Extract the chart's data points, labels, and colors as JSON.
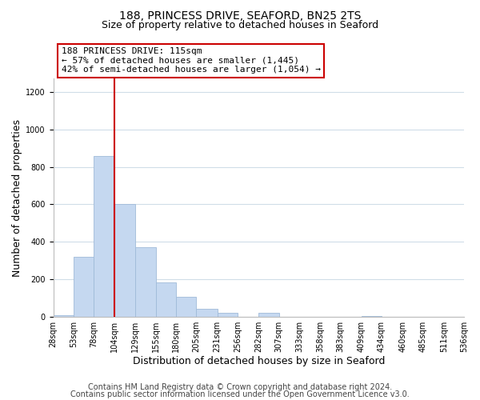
{
  "title_line1": "188, PRINCESS DRIVE, SEAFORD, BN25 2TS",
  "title_line2": "Size of property relative to detached houses in Seaford",
  "xlabel": "Distribution of detached houses by size in Seaford",
  "ylabel": "Number of detached properties",
  "bin_edges": [
    28,
    53,
    78,
    104,
    129,
    155,
    180,
    205,
    231,
    256,
    282,
    307,
    333,
    358,
    383,
    409,
    434,
    460,
    485,
    511,
    536
  ],
  "bar_heights": [
    10,
    320,
    860,
    600,
    370,
    185,
    105,
    45,
    20,
    0,
    20,
    0,
    0,
    0,
    0,
    5,
    0,
    0,
    0,
    0
  ],
  "bar_color": "#c5d8f0",
  "bar_edge_color": "#a0bad8",
  "tick_labels": [
    "28sqm",
    "53sqm",
    "78sqm",
    "104sqm",
    "129sqm",
    "155sqm",
    "180sqm",
    "205sqm",
    "231sqm",
    "256sqm",
    "282sqm",
    "307sqm",
    "333sqm",
    "358sqm",
    "383sqm",
    "409sqm",
    "434sqm",
    "460sqm",
    "485sqm",
    "511sqm",
    "536sqm"
  ],
  "ylim": [
    0,
    1270
  ],
  "yticks": [
    0,
    200,
    400,
    600,
    800,
    1000,
    1200
  ],
  "vline_x": 104,
  "vline_color": "#cc0000",
  "annotation_title": "188 PRINCESS DRIVE: 115sqm",
  "annotation_line1": "← 57% of detached houses are smaller (1,445)",
  "annotation_line2": "42% of semi-detached houses are larger (1,054) →",
  "annotation_box_color": "#ffffff",
  "annotation_border_color": "#cc0000",
  "footer_line1": "Contains HM Land Registry data © Crown copyright and database right 2024.",
  "footer_line2": "Contains public sector information licensed under the Open Government Licence v3.0.",
  "background_color": "#ffffff",
  "grid_color": "#d0dde8",
  "title_fontsize": 10,
  "subtitle_fontsize": 9,
  "axis_label_fontsize": 9,
  "tick_fontsize": 7,
  "footer_fontsize": 7,
  "annotation_fontsize": 8
}
